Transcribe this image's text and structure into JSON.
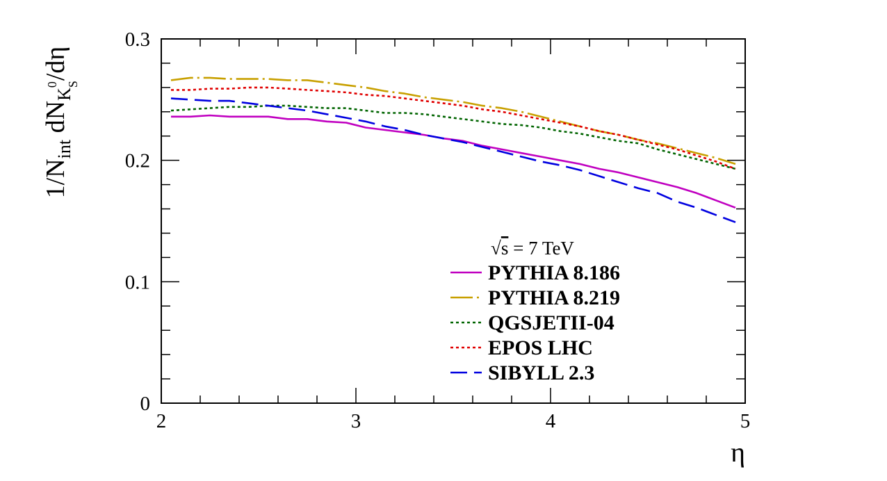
{
  "chart_data": {
    "type": "line",
    "title": "",
    "xlabel": "η",
    "ylabel": "1/Nint dNK0S/dη",
    "ylabel_parts": {
      "prefix": "1/N",
      "int_sub": "int",
      "mid": " dN",
      "k_sub": "K",
      "zero_sup": "0",
      "s_sub": "S",
      "suffix": "/dη"
    },
    "xlim": [
      2,
      5
    ],
    "ylim": [
      0,
      0.3
    ],
    "x_ticks": [
      "2",
      "3",
      "4",
      "5"
    ],
    "y_ticks": [
      "0",
      "0.1",
      "0.2",
      "0.3"
    ],
    "grid": false,
    "legend_position": "bottom-right",
    "legend_header": {
      "sqrt": "√",
      "s": "s",
      "rest": " = 7 TeV"
    },
    "series": [
      {
        "name": "PYTHIA 8.186",
        "color": "#c000c0",
        "dash": "solid",
        "x": [
          2.05,
          2.15,
          2.25,
          2.35,
          2.45,
          2.55,
          2.65,
          2.75,
          2.85,
          2.95,
          3.05,
          3.15,
          3.25,
          3.35,
          3.45,
          3.55,
          3.65,
          3.75,
          3.85,
          3.95,
          4.05,
          4.15,
          4.25,
          4.35,
          4.45,
          4.55,
          4.65,
          4.75,
          4.85,
          4.95
        ],
        "values": [
          0.236,
          0.236,
          0.237,
          0.236,
          0.236,
          0.236,
          0.234,
          0.234,
          0.232,
          0.231,
          0.227,
          0.225,
          0.223,
          0.221,
          0.218,
          0.216,
          0.212,
          0.209,
          0.206,
          0.203,
          0.2,
          0.197,
          0.193,
          0.19,
          0.186,
          0.182,
          0.178,
          0.173,
          0.167,
          0.161
        ]
      },
      {
        "name": "PYTHIA 8.219",
        "color": "#c8a000",
        "dash": "longdash",
        "x": [
          2.05,
          2.15,
          2.25,
          2.35,
          2.45,
          2.55,
          2.65,
          2.75,
          2.85,
          2.95,
          3.05,
          3.15,
          3.25,
          3.35,
          3.45,
          3.55,
          3.65,
          3.75,
          3.85,
          3.95,
          4.05,
          4.15,
          4.25,
          4.35,
          4.45,
          4.55,
          4.65,
          4.75,
          4.85,
          4.95
        ],
        "values": [
          0.266,
          0.268,
          0.268,
          0.267,
          0.267,
          0.267,
          0.266,
          0.266,
          0.264,
          0.262,
          0.26,
          0.257,
          0.255,
          0.252,
          0.25,
          0.248,
          0.245,
          0.243,
          0.24,
          0.236,
          0.232,
          0.228,
          0.224,
          0.221,
          0.217,
          0.214,
          0.21,
          0.206,
          0.202,
          0.197
        ]
      },
      {
        "name": "QGSJETII-04",
        "color": "#006400",
        "dash": "dotted",
        "x": [
          2.05,
          2.15,
          2.25,
          2.35,
          2.45,
          2.55,
          2.65,
          2.75,
          2.85,
          2.95,
          3.05,
          3.15,
          3.25,
          3.35,
          3.45,
          3.55,
          3.65,
          3.75,
          3.85,
          3.95,
          4.05,
          4.15,
          4.25,
          4.35,
          4.45,
          4.55,
          4.65,
          4.75,
          4.85,
          4.95
        ],
        "values": [
          0.241,
          0.242,
          0.243,
          0.244,
          0.244,
          0.245,
          0.245,
          0.244,
          0.243,
          0.243,
          0.241,
          0.239,
          0.239,
          0.238,
          0.236,
          0.234,
          0.232,
          0.23,
          0.229,
          0.227,
          0.224,
          0.222,
          0.219,
          0.216,
          0.214,
          0.209,
          0.205,
          0.201,
          0.197,
          0.193
        ]
      },
      {
        "name": "EPOS LHC",
        "color": "#e00000",
        "dash": "dotted",
        "x": [
          2.05,
          2.15,
          2.25,
          2.35,
          2.45,
          2.55,
          2.65,
          2.75,
          2.85,
          2.95,
          3.05,
          3.15,
          3.25,
          3.35,
          3.45,
          3.55,
          3.65,
          3.75,
          3.85,
          3.95,
          4.05,
          4.15,
          4.25,
          4.35,
          4.45,
          4.55,
          4.65,
          4.75,
          4.85,
          4.95
        ],
        "values": [
          0.258,
          0.258,
          0.259,
          0.259,
          0.26,
          0.26,
          0.259,
          0.258,
          0.257,
          0.256,
          0.254,
          0.253,
          0.251,
          0.249,
          0.247,
          0.245,
          0.242,
          0.24,
          0.237,
          0.234,
          0.231,
          0.228,
          0.224,
          0.221,
          0.217,
          0.213,
          0.209,
          0.204,
          0.199,
          0.193
        ]
      },
      {
        "name": "SIBYLL 2.3",
        "color": "#0000e0",
        "dash": "dashed",
        "x": [
          2.05,
          2.15,
          2.25,
          2.35,
          2.45,
          2.55,
          2.65,
          2.75,
          2.85,
          2.95,
          3.05,
          3.15,
          3.25,
          3.35,
          3.45,
          3.55,
          3.65,
          3.75,
          3.85,
          3.95,
          4.05,
          4.15,
          4.25,
          4.35,
          4.45,
          4.55,
          4.65,
          4.75,
          4.85,
          4.95
        ],
        "values": [
          0.251,
          0.25,
          0.249,
          0.249,
          0.247,
          0.245,
          0.243,
          0.241,
          0.238,
          0.235,
          0.232,
          0.228,
          0.225,
          0.221,
          0.218,
          0.215,
          0.211,
          0.207,
          0.203,
          0.199,
          0.196,
          0.192,
          0.187,
          0.182,
          0.177,
          0.173,
          0.166,
          0.161,
          0.155,
          0.149
        ]
      }
    ]
  }
}
